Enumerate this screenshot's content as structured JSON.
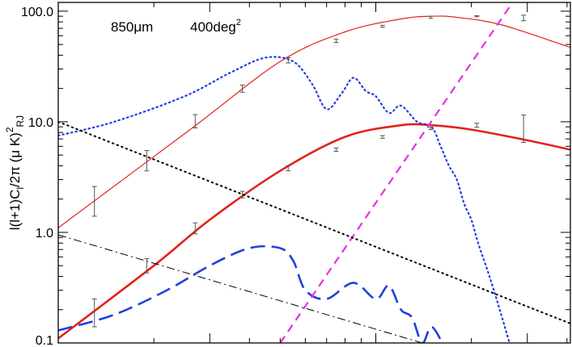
{
  "chart_data": {
    "type": "line",
    "title": "",
    "annotation": {
      "wavelength": "850",
      "unit": "μm",
      "area": "400deg",
      "area_exp": "2"
    },
    "ylabel": {
      "main": "l(l+1)C",
      "sub_l": "l",
      "mid": "/2π (μ K)",
      "sup": "2",
      "sub_rj": "RJ"
    },
    "xscale": "log",
    "yscale": "log",
    "xlim": [
      1.0,
      41.0
    ],
    "ylim": [
      0.1,
      120
    ],
    "yticks": [
      {
        "value": 0.1,
        "label": "0.1"
      },
      {
        "value": 1.0,
        "label": "1.0"
      },
      {
        "value": 10.0,
        "label": "10.0"
      },
      {
        "value": 100.0,
        "label": "100.0"
      }
    ],
    "xticks_major": [
      3,
      10,
      30
    ],
    "series": [
      {
        "style": "thin-red",
        "color": "#e2231a",
        "x": [
          1.0,
          2.6,
          5.0,
          8.0,
          12.0,
          15.0,
          18.0,
          25.0,
          41.0
        ],
        "y": [
          1.1,
          8.5,
          35,
          65,
          85,
          90,
          88,
          75,
          47
        ]
      },
      {
        "style": "thick-red",
        "color": "#e2231a",
        "x": [
          1.0,
          2.0,
          3.0,
          5.0,
          8.0,
          12.0,
          15.0,
          20.0,
          30.0,
          41.0
        ],
        "y": [
          0.11,
          0.5,
          1.3,
          3.6,
          7.3,
          9.3,
          9.3,
          8.5,
          6.8,
          5.6
        ]
      },
      {
        "style": "dotted-blue",
        "color": "#1f3fe0",
        "x": [
          1.0,
          1.5,
          2.5,
          3.5,
          4.5,
          5.5,
          6.3,
          7.0,
          7.8,
          8.5,
          9.3,
          10.0,
          11.0,
          12.0,
          13.5,
          15.0,
          16.0,
          17.0,
          18.0,
          19.0,
          20.0,
          21.0,
          22.5,
          24.0,
          27.0
        ],
        "y": [
          7.5,
          10,
          17,
          28,
          38,
          35,
          22,
          13,
          18,
          25,
          19,
          17,
          12,
          14,
          10,
          9,
          6,
          4,
          3,
          1.8,
          1.3,
          0.8,
          0.45,
          0.25,
          0.08
        ]
      },
      {
        "style": "dashed-blue",
        "color": "#1f3fe0",
        "x": [
          1.0,
          1.5,
          2.2,
          3.0,
          4.0,
          5.0,
          5.5,
          6.0,
          7.0,
          8.5,
          10.0,
          11.0,
          12.0,
          13.0,
          14.0,
          15.0,
          16.5
        ],
        "y": [
          0.13,
          0.18,
          0.3,
          0.5,
          0.72,
          0.72,
          0.55,
          0.3,
          0.25,
          0.35,
          0.25,
          0.33,
          0.2,
          0.17,
          0.1,
          0.14,
          0.09
        ]
      },
      {
        "style": "dashed-magenta",
        "color": "#e62ee6",
        "x": [
          5.0,
          41.0
        ],
        "y": [
          0.1,
          700
        ]
      },
      {
        "style": "dotted-black",
        "color": "#000000",
        "x": [
          1.0,
          41.0
        ],
        "y": [
          10.0,
          0.15
        ]
      },
      {
        "style": "dashdot-black",
        "color": "#000000",
        "x": [
          1.0,
          14.0
        ],
        "y": [
          0.95,
          0.1
        ]
      }
    ],
    "errorbars": [
      {
        "series": "thin-red",
        "x": 1.3,
        "y": 2.0,
        "lo": 1.4,
        "hi": 2.6
      },
      {
        "series": "thin-red",
        "x": 1.9,
        "y": 4.5,
        "lo": 3.6,
        "hi": 5.5
      },
      {
        "series": "thin-red",
        "x": 2.7,
        "y": 10.2,
        "lo": 8.8,
        "hi": 11.6
      },
      {
        "series": "thin-red",
        "x": 3.8,
        "y": 20.0,
        "lo": 18.5,
        "hi": 21.5
      },
      {
        "series": "thin-red",
        "x": 5.3,
        "y": 36.0,
        "lo": 34.0,
        "hi": 38.0
      },
      {
        "series": "thin-red",
        "x": 7.5,
        "y": 54.0,
        "lo": 52.0,
        "hi": 56.0
      },
      {
        "series": "thin-red",
        "x": 10.5,
        "y": 73.0,
        "lo": 71.5,
        "hi": 74.5
      },
      {
        "series": "thin-red",
        "x": 14.9,
        "y": 88.0,
        "lo": 86.0,
        "hi": 90.0
      },
      {
        "series": "thin-red",
        "x": 20.8,
        "y": 90.0,
        "lo": 89.0,
        "hi": 91.0
      },
      {
        "series": "thin-red",
        "x": 29.2,
        "y": 87.0,
        "lo": 82.0,
        "hi": 92.0
      },
      {
        "series": "thick-red",
        "x": 1.3,
        "y": 0.19,
        "lo": 0.14,
        "hi": 0.25
      },
      {
        "series": "thick-red",
        "x": 1.9,
        "y": 0.5,
        "lo": 0.43,
        "hi": 0.58
      },
      {
        "series": "thick-red",
        "x": 2.7,
        "y": 1.1,
        "lo": 0.97,
        "hi": 1.22
      },
      {
        "series": "thick-red",
        "x": 3.8,
        "y": 2.2,
        "lo": 2.05,
        "hi": 2.35
      },
      {
        "series": "thick-red",
        "x": 5.3,
        "y": 3.8,
        "lo": 3.6,
        "hi": 4.0
      },
      {
        "series": "thick-red",
        "x": 7.5,
        "y": 5.6,
        "lo": 5.4,
        "hi": 5.8
      },
      {
        "series": "thick-red",
        "x": 10.5,
        "y": 7.3,
        "lo": 7.1,
        "hi": 7.5
      },
      {
        "series": "thick-red",
        "x": 14.9,
        "y": 8.7,
        "lo": 8.5,
        "hi": 8.9
      },
      {
        "series": "thick-red",
        "x": 20.8,
        "y": 9.3,
        "lo": 8.9,
        "hi": 9.7
      },
      {
        "series": "thick-red",
        "x": 29.2,
        "y": 9.2,
        "lo": 6.5,
        "hi": 11.5
      }
    ]
  }
}
